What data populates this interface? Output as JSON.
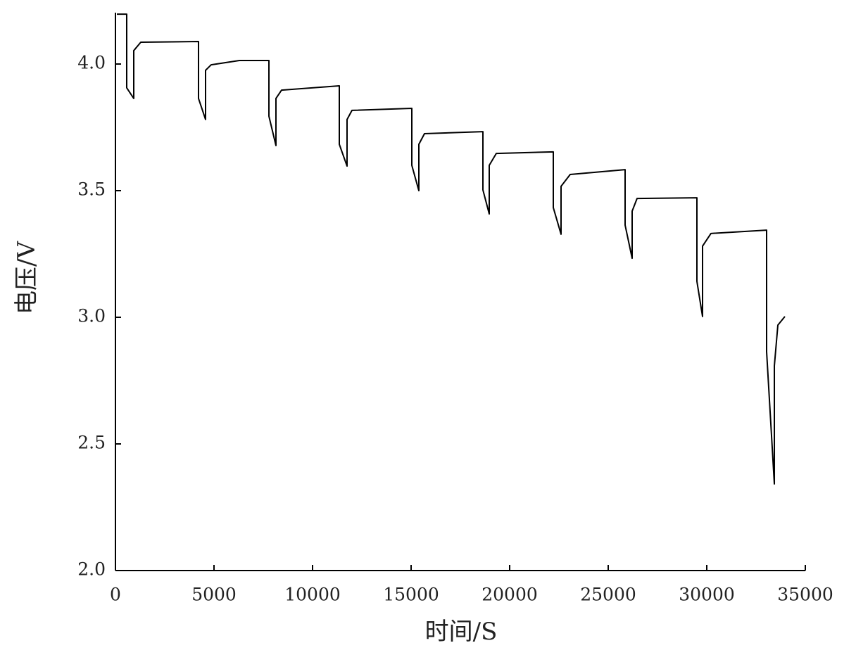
{
  "chart_data": {
    "type": "line",
    "xlabel": "时间/S",
    "ylabel": "电压/V",
    "x": [
      71,
      571,
      571,
      929,
      929,
      1286,
      4214,
      4214,
      4571,
      4571,
      4857,
      6286,
      7786,
      7786,
      8143,
      8143,
      8429,
      11357,
      11357,
      11750,
      11750,
      12000,
      15036,
      15036,
      15393,
      15393,
      15679,
      18643,
      18643,
      18964,
      18964,
      19321,
      22214,
      22214,
      22607,
      22607,
      23071,
      25857,
      25857,
      26214,
      26214,
      26464,
      29500,
      29500,
      29786,
      29786,
      30214,
      33036,
      33036,
      33429,
      33429,
      33607,
      33964
    ],
    "values": [
      4.197,
      4.197,
      3.906,
      3.864,
      4.053,
      4.086,
      4.089,
      3.864,
      3.781,
      3.975,
      3.997,
      4.014,
      4.014,
      3.794,
      3.678,
      3.864,
      3.897,
      3.914,
      3.683,
      3.597,
      3.781,
      3.817,
      3.825,
      3.6,
      3.5,
      3.683,
      3.725,
      3.733,
      3.503,
      3.408,
      3.6,
      3.647,
      3.653,
      3.433,
      3.328,
      3.517,
      3.564,
      3.583,
      3.364,
      3.233,
      3.419,
      3.469,
      3.472,
      3.142,
      3.003,
      3.281,
      3.331,
      3.344,
      2.864,
      2.342,
      2.808,
      2.969,
      3.003
    ],
    "color": "#000000",
    "xlim": [
      0,
      35000
    ],
    "xticks": [
      0,
      5000,
      10000,
      15000,
      20000,
      25000,
      30000,
      35000
    ],
    "ylim": [
      2.0,
      4.2
    ],
    "yticks": [
      {
        "value": 2,
        "label": "2.0"
      },
      2.5,
      {
        "value": 3,
        "label": "3.0"
      },
      3.5,
      {
        "value": 4,
        "label": "4.0"
      }
    ],
    "grid": false
  }
}
